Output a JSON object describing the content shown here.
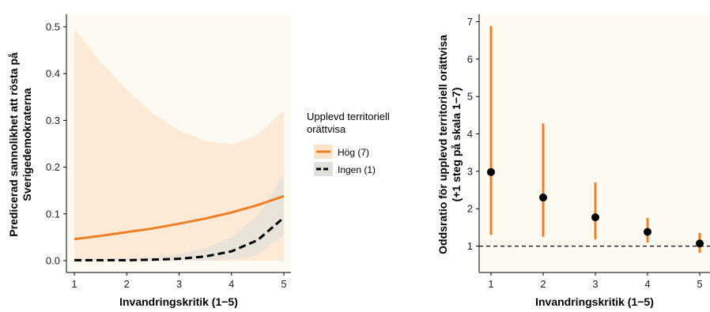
{
  "colors": {
    "panel_bg": "#fdfaf2",
    "hog": "#f07f23",
    "hog_band": "#fbe3cc",
    "ingen": "#000000",
    "ingen_band": "#e2e0da",
    "point": "#000000"
  },
  "chart_data": [
    {
      "type": "line",
      "xlabel": "Invandringskritik (1−5)",
      "ylabel_lines": [
        "Predicerad sannolikhet att rösta på",
        "Sverigedemokraterna"
      ],
      "xlim": [
        1,
        5
      ],
      "ylim": [
        0,
        0.5
      ],
      "xticks": [
        "1",
        "2",
        "3",
        "4",
        "5"
      ],
      "yticks": [
        "0.0",
        "0.1",
        "0.2",
        "0.3",
        "0.4",
        "0.5"
      ],
      "legend": {
        "title_lines": [
          "Upplevd territoriell",
          "orättvisa"
        ],
        "placement": "right"
      },
      "x": [
        1,
        1.5,
        2,
        2.5,
        3,
        3.5,
        4,
        4.5,
        5
      ],
      "series": [
        {
          "name": "Hög (7)",
          "style": "solid",
          "values": [
            0.046,
            0.053,
            0.061,
            0.069,
            0.079,
            0.09,
            0.103,
            0.119,
            0.138
          ],
          "lower": [
            0.0,
            0.0,
            0.0,
            0.0,
            0.0,
            0.0,
            0.0,
            0.0,
            0.0
          ],
          "upper": [
            0.495,
            0.425,
            0.365,
            0.315,
            0.278,
            0.256,
            0.248,
            0.268,
            0.322
          ]
        },
        {
          "name": "Ingen (1)",
          "style": "dashed",
          "values": [
            0.001,
            0.001,
            0.001,
            0.002,
            0.004,
            0.009,
            0.02,
            0.044,
            0.092
          ],
          "lower": [
            0.0,
            0.0,
            0.0,
            0.0,
            0.0,
            0.0,
            0.002,
            0.012,
            0.055
          ],
          "upper": [
            0.004,
            0.004,
            0.005,
            0.008,
            0.014,
            0.026,
            0.05,
            0.095,
            0.185
          ]
        }
      ]
    },
    {
      "type": "scatter",
      "xlabel": "Invandringskritik (1−5)",
      "ylabel_lines": [
        "Oddsratio för upplevd territoriell orättvisa",
        "(+1 steg på skala 1−7)"
      ],
      "xlim": [
        1,
        5
      ],
      "ylim": [
        0.4,
        7.2
      ],
      "xticks": [
        "1",
        "2",
        "3",
        "4",
        "5"
      ],
      "yticks": [
        "1",
        "2",
        "3",
        "4",
        "5",
        "6",
        "7"
      ],
      "reference_line": 1,
      "x": [
        1,
        2,
        3,
        4,
        5
      ],
      "values": [
        2.98,
        2.3,
        1.77,
        1.38,
        1.07
      ],
      "ci_low": [
        1.3,
        1.25,
        1.18,
        1.1,
        0.82
      ],
      "ci_high": [
        6.88,
        4.28,
        2.7,
        1.75,
        1.35
      ]
    }
  ]
}
